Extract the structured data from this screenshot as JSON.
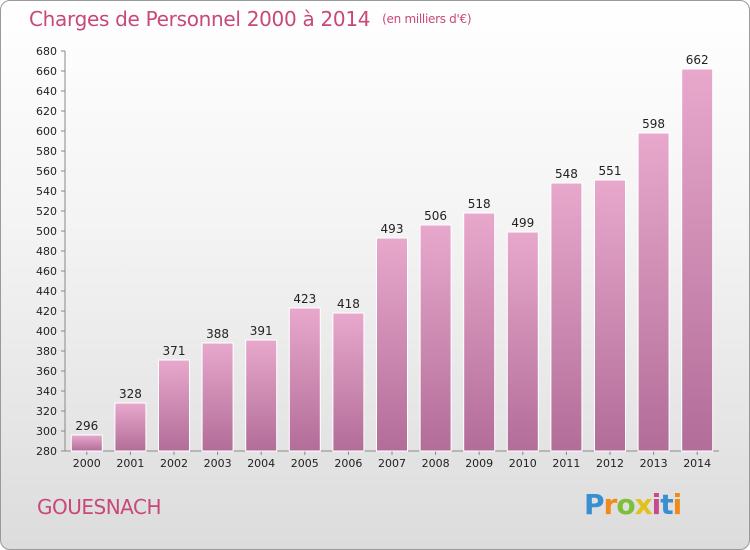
{
  "header": {
    "title": "Charges de Personnel 2000 à 2014",
    "subtitle": "(en milliers d'€)"
  },
  "footer": {
    "commune": "GOUESNACH",
    "logo_text": "Proxiti"
  },
  "colors": {
    "title": "#c8487a",
    "bar_top": "#e8a8cc",
    "bar_bottom": "#b26d98",
    "bar_border": "#ffffff"
  },
  "chart_data": {
    "type": "bar",
    "title": "Charges de Personnel 2000 à 2014",
    "subtitle": "(en milliers d'€)",
    "categories": [
      "2000",
      "2001",
      "2002",
      "2003",
      "2004",
      "2005",
      "2006",
      "2007",
      "2008",
      "2009",
      "2010",
      "2011",
      "2012",
      "2013",
      "2014"
    ],
    "values": [
      296,
      328,
      371,
      388,
      391,
      423,
      418,
      493,
      506,
      518,
      499,
      548,
      551,
      598,
      662
    ],
    "ylim": [
      280,
      680
    ],
    "ytick_step": 20,
    "grid": false,
    "data_labels": true
  }
}
